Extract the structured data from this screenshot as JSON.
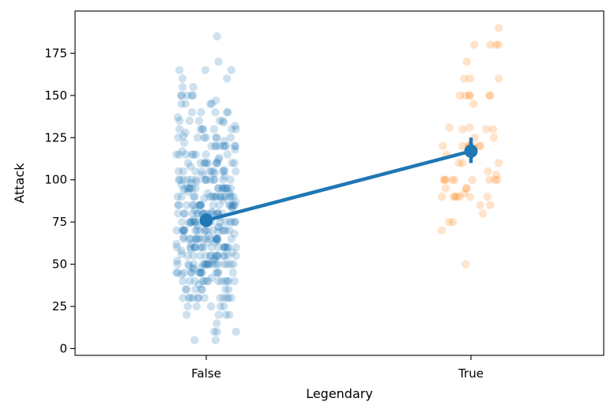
{
  "chart_data": {
    "type": "scatter",
    "subtype": "strip-plot-with-point-estimate",
    "title": "",
    "xlabel": "Legendary",
    "ylabel": "Attack",
    "categories": [
      "False",
      "True"
    ],
    "ylim": [
      -4,
      200
    ],
    "yticks": [
      0,
      25,
      50,
      75,
      100,
      125,
      150,
      175
    ],
    "colors": {
      "false_points": "#1f77b4",
      "true_points": "#ff7f0e",
      "estimate": "#1f77b4"
    },
    "point_estimate": {
      "series": "mean Attack",
      "means": [
        76,
        117
      ],
      "ci_low": [
        74,
        110
      ],
      "ci_high": [
        78,
        125
      ]
    },
    "strip": {
      "False": [
        5,
        5,
        10,
        10,
        10,
        15,
        20,
        20,
        20,
        20,
        25,
        25,
        25,
        25,
        25,
        30,
        30,
        30,
        30,
        30,
        30,
        30,
        30,
        30,
        30,
        30,
        30,
        35,
        35,
        35,
        35,
        35,
        35,
        35,
        38,
        40,
        40,
        40,
        40,
        40,
        40,
        40,
        40,
        40,
        40,
        40,
        40,
        40,
        42,
        44,
        45,
        45,
        45,
        45,
        45,
        45,
        45,
        45,
        45,
        45,
        45,
        45,
        45,
        45,
        47,
        48,
        48,
        49,
        50,
        50,
        50,
        50,
        50,
        50,
        50,
        50,
        50,
        50,
        50,
        50,
        50,
        50,
        50,
        50,
        50,
        52,
        52,
        53,
        55,
        55,
        55,
        55,
        55,
        55,
        55,
        55,
        55,
        55,
        55,
        55,
        55,
        55,
        56,
        57,
        58,
        59,
        60,
        60,
        60,
        60,
        60,
        60,
        60,
        60,
        60,
        60,
        60,
        60,
        60,
        60,
        60,
        60,
        60,
        62,
        62,
        63,
        63,
        64,
        65,
        65,
        65,
        65,
        65,
        65,
        65,
        65,
        65,
        65,
        65,
        65,
        65,
        65,
        65,
        65,
        66,
        67,
        68,
        69,
        70,
        70,
        70,
        70,
        70,
        70,
        70,
        70,
        70,
        70,
        70,
        70,
        70,
        70,
        70,
        70,
        70,
        72,
        72,
        73,
        74,
        75,
        75,
        75,
        75,
        75,
        75,
        75,
        75,
        75,
        75,
        75,
        75,
        75,
        75,
        75,
        76,
        77,
        78,
        79,
        80,
        80,
        80,
        80,
        80,
        80,
        80,
        80,
        80,
        80,
        80,
        80,
        80,
        80,
        80,
        80,
        81,
        82,
        83,
        84,
        85,
        85,
        85,
        85,
        85,
        85,
        85,
        85,
        85,
        85,
        85,
        85,
        85,
        85,
        85,
        85,
        85,
        87,
        88,
        89,
        90,
        90,
        90,
        90,
        90,
        90,
        90,
        90,
        90,
        90,
        90,
        90,
        90,
        90,
        90,
        90,
        92,
        92,
        93,
        94,
        95,
        95,
        95,
        95,
        95,
        95,
        95,
        95,
        95,
        95,
        95,
        95,
        95,
        95,
        95,
        97,
        98,
        99,
        100,
        100,
        100,
        100,
        100,
        100,
        100,
        100,
        100,
        100,
        100,
        100,
        100,
        100,
        102,
        103,
        104,
        105,
        105,
        105,
        105,
        105,
        105,
        105,
        105,
        105,
        105,
        106,
        108,
        110,
        110,
        110,
        110,
        110,
        110,
        110,
        110,
        110,
        110,
        110,
        112,
        113,
        115,
        115,
        115,
        115,
        115,
        115,
        115,
        115,
        117,
        118,
        120,
        120,
        120,
        120,
        120,
        120,
        120,
        120,
        120,
        122,
        123,
        125,
        125,
        125,
        125,
        125,
        125,
        125,
        126,
        128,
        130,
        130,
        130,
        130,
        130,
        130,
        130,
        132,
        134,
        135,
        135,
        135,
        135,
        135,
        137,
        140,
        140,
        140,
        140,
        140,
        145,
        145,
        145,
        145,
        147,
        150,
        150,
        150,
        150,
        150,
        155,
        155,
        160,
        160,
        165,
        165,
        165,
        170,
        185
      ],
      "True": [
        50,
        70,
        75,
        75,
        80,
        85,
        85,
        90,
        90,
        90,
        90,
        90,
        90,
        90,
        92,
        95,
        95,
        95,
        100,
        100,
        100,
        100,
        100,
        100,
        100,
        100,
        100,
        103,
        105,
        110,
        110,
        110,
        115,
        120,
        120,
        120,
        120,
        120,
        120,
        120,
        120,
        125,
        125,
        130,
        130,
        130,
        131,
        131,
        145,
        150,
        150,
        150,
        150,
        150,
        150,
        160,
        160,
        160,
        170,
        180,
        180,
        180,
        180,
        190
      ]
    }
  }
}
